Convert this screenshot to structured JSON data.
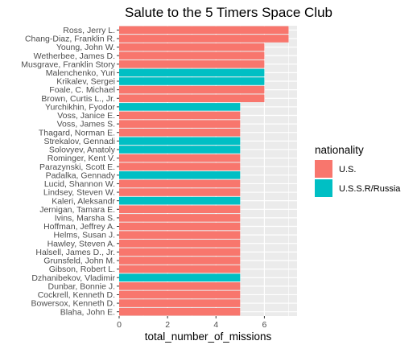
{
  "chart_data": {
    "type": "bar",
    "orientation": "horizontal",
    "title": "Salute to the 5 Timers Space Club",
    "xlabel": "total_number_of_missions",
    "ylabel": "",
    "xlim": [
      0,
      7.35
    ],
    "x_ticks": [
      0,
      2,
      4,
      6
    ],
    "grid": true,
    "legend": {
      "title": "nationality",
      "position": "right",
      "entries": [
        {
          "label": "U.S.",
          "color": "#F8766D"
        },
        {
          "label": "U.S.S.R/Russia",
          "color": "#00BFC4"
        }
      ]
    },
    "bars": [
      {
        "name": "Ross, Jerry L.",
        "value": 7,
        "nationality": "U.S."
      },
      {
        "name": "Chang-Diaz, Franklin R.",
        "value": 7,
        "nationality": "U.S."
      },
      {
        "name": "Young, John W.",
        "value": 6,
        "nationality": "U.S."
      },
      {
        "name": "Wetherbee, James D.",
        "value": 6,
        "nationality": "U.S."
      },
      {
        "name": "Musgrave, Franklin Story",
        "value": 6,
        "nationality": "U.S."
      },
      {
        "name": "Malenchenko, Yuri",
        "value": 6,
        "nationality": "U.S.S.R/Russia"
      },
      {
        "name": "Krikalev, Sergei",
        "value": 6,
        "nationality": "U.S.S.R/Russia"
      },
      {
        "name": "Foale, C. Michael",
        "value": 6,
        "nationality": "U.S."
      },
      {
        "name": "Brown, Curtis L., Jr.",
        "value": 6,
        "nationality": "U.S."
      },
      {
        "name": "Yurchikhin, Fyodor",
        "value": 5,
        "nationality": "U.S.S.R/Russia"
      },
      {
        "name": "Voss, Janice E.",
        "value": 5,
        "nationality": "U.S."
      },
      {
        "name": "Voss, James S.",
        "value": 5,
        "nationality": "U.S."
      },
      {
        "name": "Thagard, Norman E.",
        "value": 5,
        "nationality": "U.S."
      },
      {
        "name": "Strekalov, Gennadi",
        "value": 5,
        "nationality": "U.S.S.R/Russia"
      },
      {
        "name": "Solovyev, Anatoly",
        "value": 5,
        "nationality": "U.S.S.R/Russia"
      },
      {
        "name": "Rominger, Kent V.",
        "value": 5,
        "nationality": "U.S."
      },
      {
        "name": "Parazynski, Scott E.",
        "value": 5,
        "nationality": "U.S."
      },
      {
        "name": "Padalka, Gennady",
        "value": 5,
        "nationality": "U.S.S.R/Russia"
      },
      {
        "name": "Lucid, Shannon W.",
        "value": 5,
        "nationality": "U.S."
      },
      {
        "name": "Lindsey, Steven W.",
        "value": 5,
        "nationality": "U.S."
      },
      {
        "name": "Kaleri, Aleksandr",
        "value": 5,
        "nationality": "U.S.S.R/Russia"
      },
      {
        "name": "Jernigan, Tamara E.",
        "value": 5,
        "nationality": "U.S."
      },
      {
        "name": "Ivins, Marsha S.",
        "value": 5,
        "nationality": "U.S."
      },
      {
        "name": "Hoffman, Jeffrey A.",
        "value": 5,
        "nationality": "U.S."
      },
      {
        "name": "Helms, Susan J.",
        "value": 5,
        "nationality": "U.S."
      },
      {
        "name": "Hawley, Steven A.",
        "value": 5,
        "nationality": "U.S."
      },
      {
        "name": "Halsell, James D., Jr.",
        "value": 5,
        "nationality": "U.S."
      },
      {
        "name": "Grunsfeld, John M.",
        "value": 5,
        "nationality": "U.S."
      },
      {
        "name": "Gibson, Robert L.",
        "value": 5,
        "nationality": "U.S."
      },
      {
        "name": "Dzhanibekov, Vladimir",
        "value": 5,
        "nationality": "U.S.S.R/Russia"
      },
      {
        "name": "Dunbar, Bonnie J.",
        "value": 5,
        "nationality": "U.S."
      },
      {
        "name": "Cockrell, Kenneth D.",
        "value": 5,
        "nationality": "U.S."
      },
      {
        "name": "Bowersox, Kenneth D.",
        "value": 5,
        "nationality": "U.S."
      },
      {
        "name": "Blaha, John E.",
        "value": 5,
        "nationality": "U.S."
      }
    ]
  }
}
